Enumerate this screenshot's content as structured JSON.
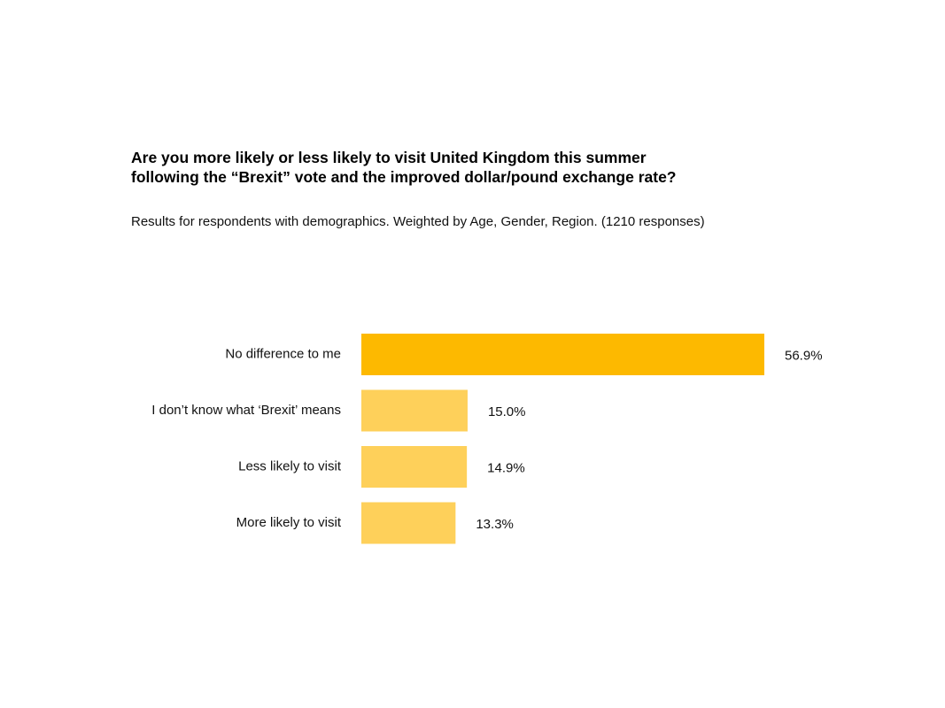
{
  "title": {
    "line1": "Are you more likely or less likely to visit United Kingdom this summer",
    "line2": "following the “Brexit” vote and the improved dollar/pound exchange rate?"
  },
  "subtitle": "Results for respondents with demographics. Weighted by Age, Gender, Region. (1210 responses)",
  "colors": {
    "highlight": "#FDB900",
    "bar": "#FED05A"
  },
  "chart_data": {
    "type": "bar",
    "orientation": "horizontal",
    "categories": [
      "No difference to me",
      "I don’t know what ‘Brexit’ means",
      "Less likely to visit",
      "More likely to visit"
    ],
    "values": [
      56.9,
      15.0,
      14.9,
      13.3
    ],
    "value_labels": [
      "56.9%",
      "15.0%",
      "14.9%",
      "13.3%"
    ],
    "unit": "%",
    "xlim": [
      0,
      56.9
    ],
    "grid": false,
    "legend": "none"
  }
}
